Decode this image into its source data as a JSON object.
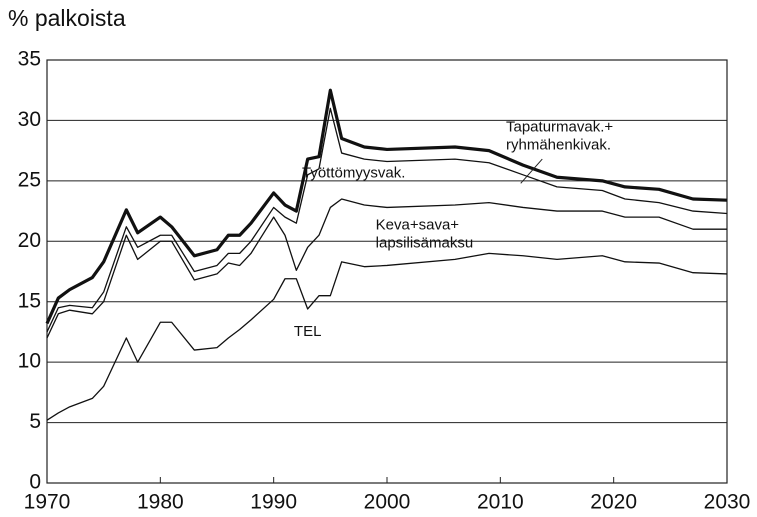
{
  "chart_data": {
    "type": "stacked_line",
    "y_label": "% palkoista",
    "x": [
      1970,
      1971,
      1972,
      1974,
      1975,
      1977,
      1978,
      1980,
      1981,
      1983,
      1985,
      1986,
      1987,
      1988,
      1990,
      1991,
      1992,
      1993,
      1994,
      1995,
      1996,
      1998,
      2000,
      2006,
      2009,
      2012,
      2015,
      2019,
      2021,
      2024,
      2027,
      2030
    ],
    "series": [
      {
        "name": "TEL",
        "color": "#111111",
        "values": [
          5.2,
          5.8,
          6.3,
          7.0,
          8.0,
          12.0,
          10.0,
          13.3,
          13.3,
          11.0,
          11.2,
          12.0,
          12.7,
          13.5,
          15.2,
          16.9,
          16.9,
          14.4,
          15.5,
          15.5,
          18.3,
          17.9,
          18.0,
          18.5,
          19.0,
          18.8,
          18.5,
          18.8,
          18.3,
          18.2,
          17.4,
          17.3
        ]
      },
      {
        "name": "Keva+sava+ lapsilisämaksu",
        "color": "#111111",
        "values": [
          6.8,
          8.2,
          8.0,
          7.0,
          7.0,
          8.5,
          8.5,
          6.7,
          6.7,
          5.8,
          6.1,
          6.2,
          5.3,
          5.5,
          6.8,
          3.6,
          0.7,
          5.1,
          5.0,
          7.3,
          5.2,
          5.1,
          4.8,
          4.5,
          4.2,
          4.0,
          4.0,
          3.7,
          3.7,
          3.8,
          3.6,
          3.7
        ]
      },
      {
        "name": "Työttömyysvak.",
        "color": "#111111",
        "values": [
          0.5,
          0.5,
          0.4,
          0.5,
          0.8,
          0.7,
          1.0,
          0.5,
          0.5,
          0.7,
          0.7,
          0.8,
          1.0,
          1.0,
          0.8,
          1.5,
          3.9,
          6.0,
          5.5,
          8.2,
          3.8,
          3.8,
          3.8,
          3.8,
          3.3,
          2.7,
          2.0,
          1.7,
          1.5,
          1.2,
          1.5,
          1.3
        ]
      },
      {
        "name": "Tapaturmavak.+ ryhmähenkivak.",
        "color": "#111111",
        "values": [
          0.7,
          0.8,
          1.3,
          2.5,
          2.5,
          1.4,
          1.2,
          1.5,
          0.7,
          1.3,
          1.3,
          1.5,
          1.5,
          1.5,
          1.2,
          1.0,
          1.0,
          1.3,
          1.0,
          1.5,
          1.2,
          1.0,
          1.0,
          1.0,
          1.0,
          0.8,
          0.8,
          0.8,
          1.0,
          1.1,
          1.0,
          1.1
        ]
      }
    ],
    "xlim": [
      1970,
      2030
    ],
    "xticks": [
      1970,
      1980,
      1990,
      2000,
      2010,
      2020,
      2030
    ],
    "ylim": [
      0,
      35
    ],
    "yticks": [
      0,
      5,
      10,
      15,
      20,
      25,
      30,
      35
    ],
    "grid": true
  }
}
